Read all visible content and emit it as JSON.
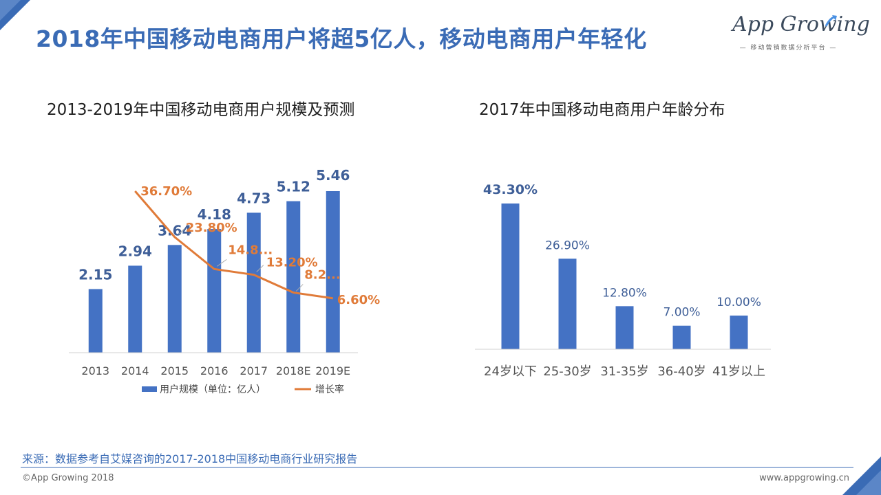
{
  "header": {
    "title": "2018年中国移动电商用户将超5亿人，移动电商用户年轻化",
    "logo_text": "App Growing",
    "logo_sub": "— 移动营销数据分析平台 —"
  },
  "colors": {
    "accent": "#3a6bb5",
    "bar": "#4472c4",
    "line": "#e07b39",
    "value_label": "#3f5f98"
  },
  "chart_data": [
    {
      "type": "bar",
      "title": "2013-2019年中国移动电商用户规模及预测",
      "categories": [
        "2013",
        "2014",
        "2015",
        "2016",
        "2017",
        "2018E",
        "2019E"
      ],
      "series": [
        {
          "name": "用户规模（单位：亿人）",
          "type": "bar",
          "values": [
            2.15,
            2.94,
            3.64,
            4.18,
            4.73,
            5.12,
            5.46
          ],
          "labels": [
            "2.15",
            "2.94",
            "3.64",
            "4.18",
            "4.73",
            "5.12",
            "5.46"
          ]
        },
        {
          "name": "增长率",
          "type": "line",
          "values": [
            null,
            36.7,
            23.8,
            14.8,
            13.2,
            8.2,
            6.6
          ],
          "labels": [
            "",
            "36.70%",
            "23.80%",
            "14.8...",
            "13.20%",
            "8.2...",
            "6.60%"
          ]
        }
      ],
      "bar_ylim": [
        0,
        5.46
      ],
      "line_ylim": [
        0,
        36.7
      ],
      "legend_position": "bottom",
      "grid": false
    },
    {
      "type": "bar",
      "title": "2017年中国移动电商用户年龄分布",
      "categories": [
        "24岁以下",
        "25-30岁",
        "31-35岁",
        "36-40岁",
        "41岁以上"
      ],
      "values": [
        43.3,
        26.9,
        12.8,
        7.0,
        10.0
      ],
      "labels": [
        "43.30%",
        "26.90%",
        "12.80%",
        "7.00%",
        "10.00%"
      ],
      "ylim": [
        0,
        43.3
      ],
      "grid": false
    }
  ],
  "source": "来源：数据参考自艾媒咨询的2017-2018中国移动电商行业研究报告",
  "footer": {
    "copyright": "©App Growing 2018",
    "website": "www.appgrowing.cn"
  }
}
